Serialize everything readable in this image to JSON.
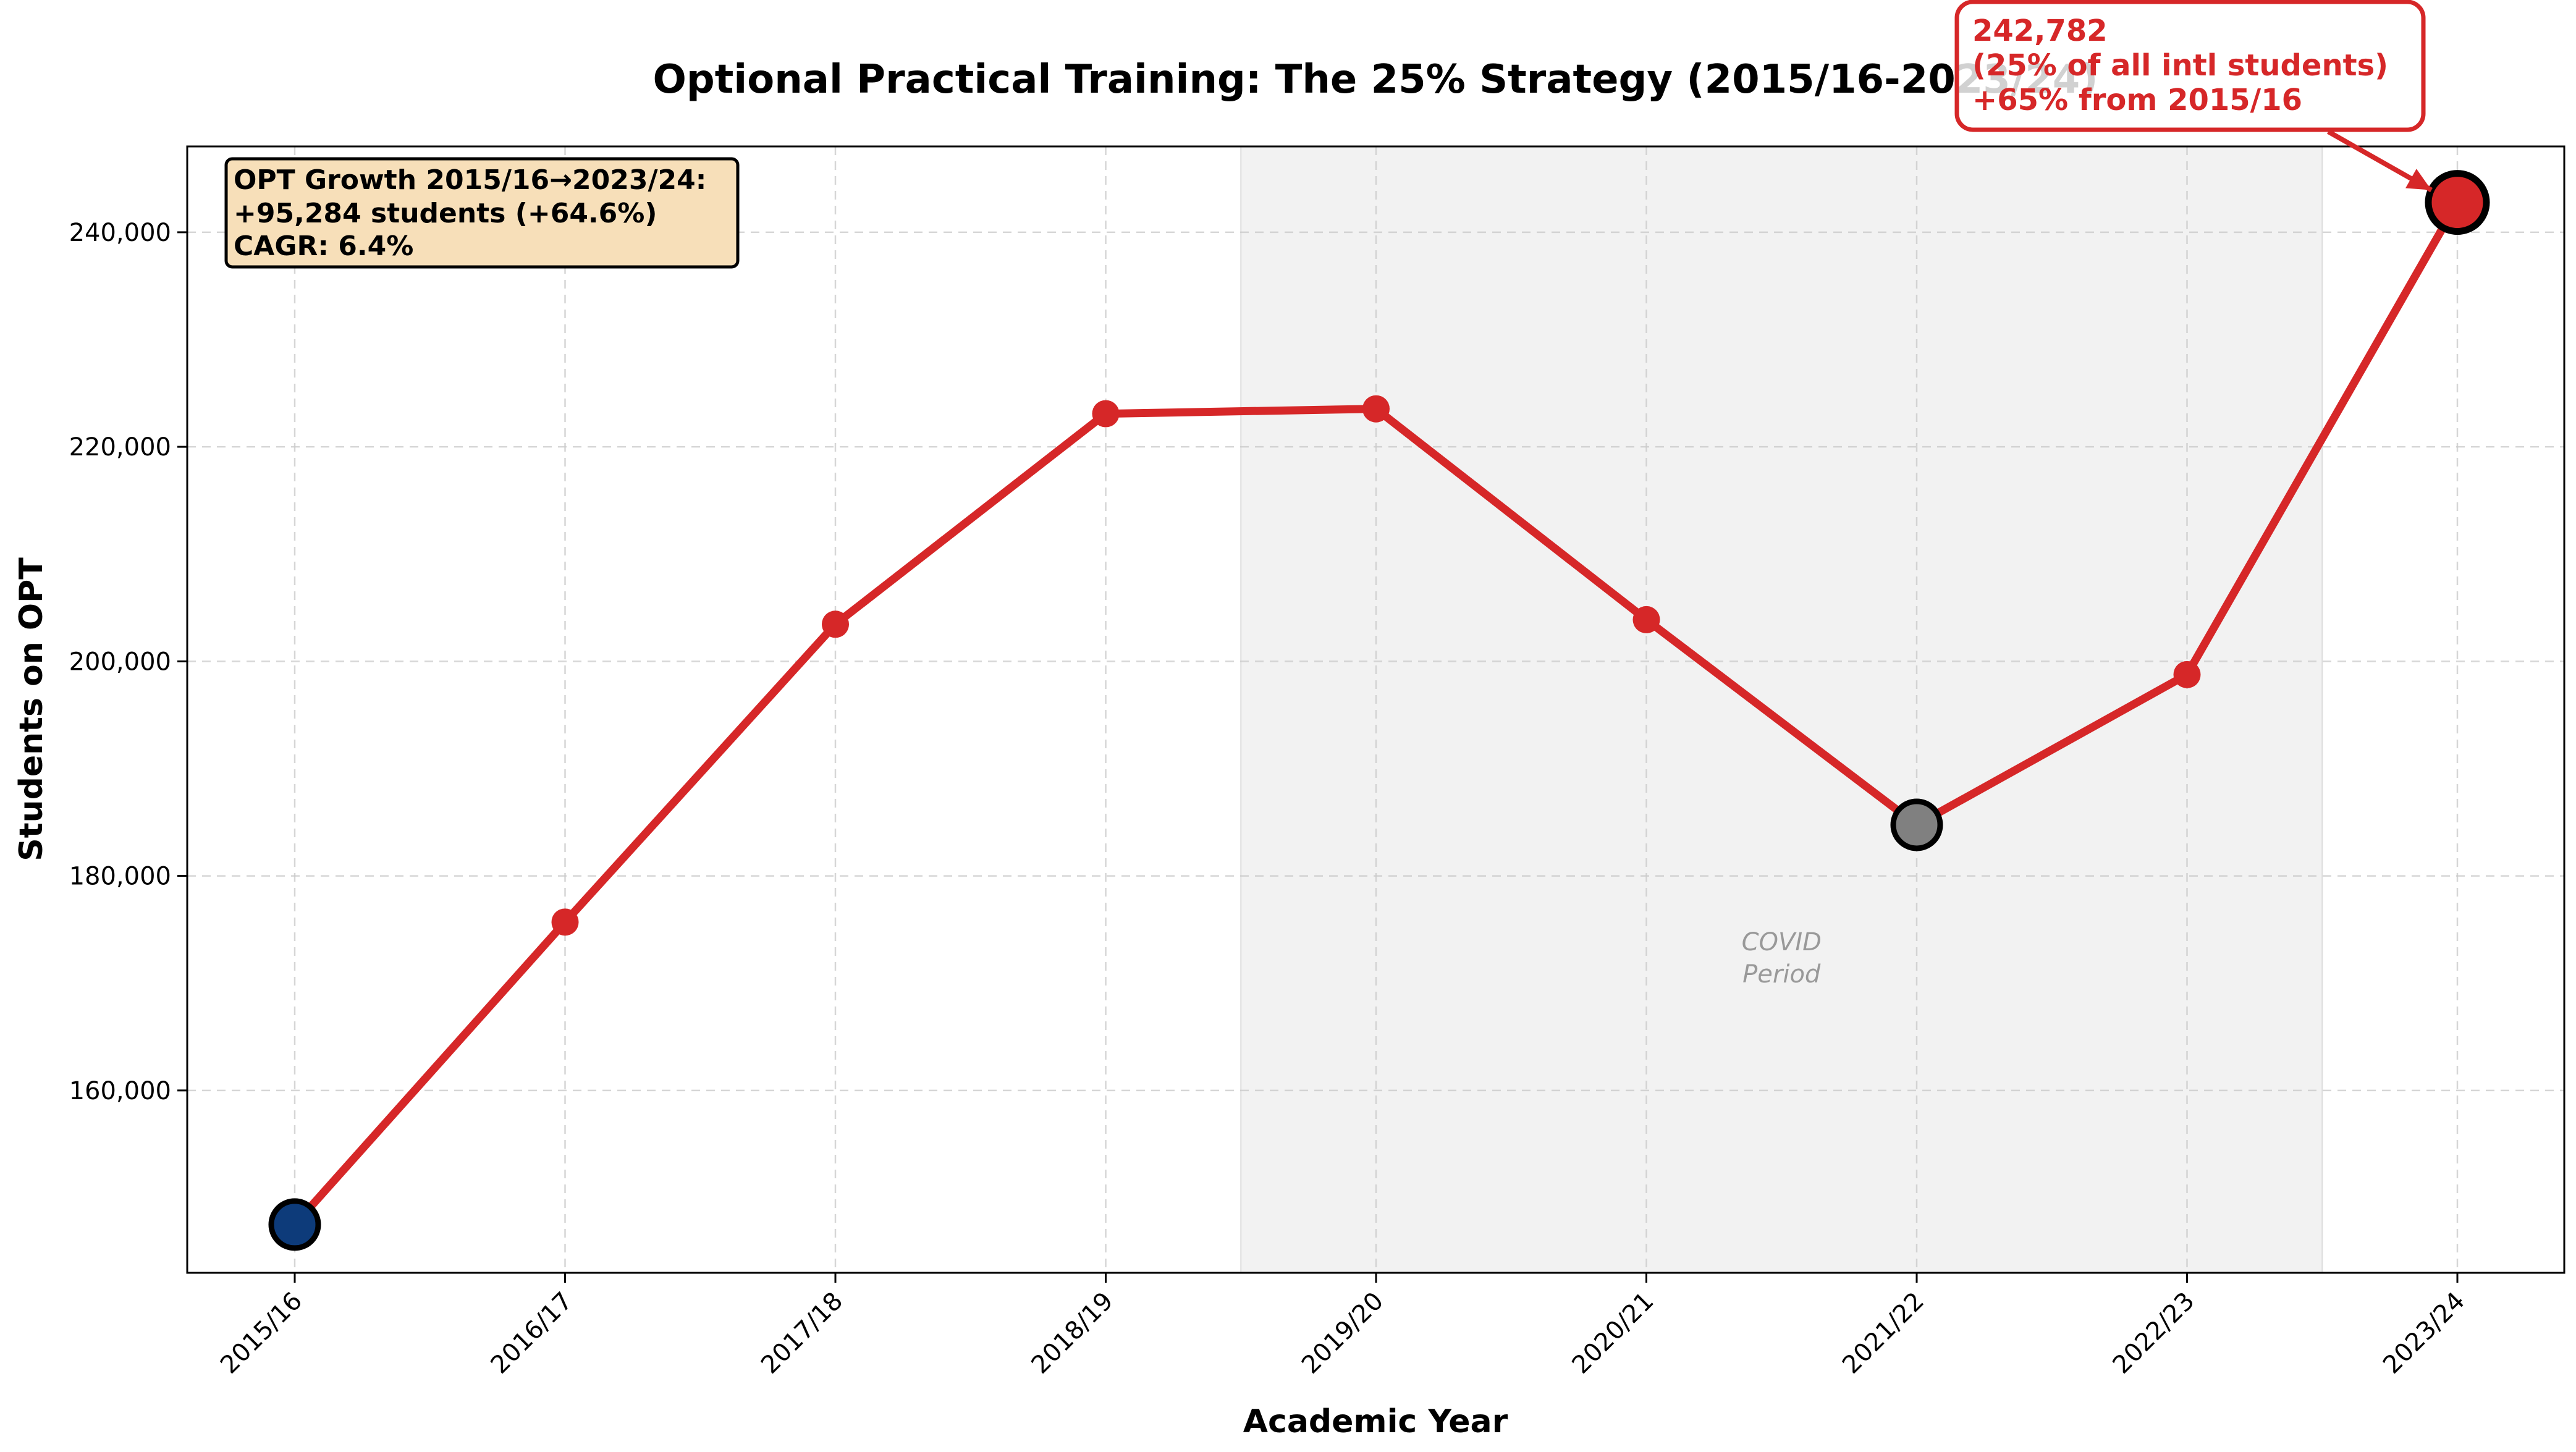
{
  "chart_data": {
    "type": "line",
    "title": "Optional Practical Training: The 25% Strategy (2015/16-2023/24)",
    "xlabel": "Academic Year",
    "ylabel": "Students on OPT",
    "categories": [
      "2015/16",
      "2016/17",
      "2017/18",
      "2018/19",
      "2019/20",
      "2020/21",
      "2021/22",
      "2022/23",
      "2023/24"
    ],
    "series": [
      {
        "values": [
          147498,
          175695,
          203462,
          223085,
          223539,
          203885,
          184759,
          198764,
          242782
        ]
      }
    ],
    "ylim": [
      143000,
      248000
    ],
    "yticks": [
      160000,
      180000,
      200000,
      220000,
      240000
    ],
    "ytick_labels": [
      "160,000",
      "180,000",
      "200,000",
      "220,000",
      "240,000"
    ],
    "grid": true,
    "shaded_region": {
      "from_category": "2018/19",
      "to_category": "2022/23",
      "label_line1": "COVID",
      "label_line2": "Period"
    },
    "highlight_points": [
      {
        "category": "2015/16",
        "color": "#0d3b7a"
      },
      {
        "category": "2021/22",
        "color": "#808080"
      },
      {
        "category": "2023/24",
        "color": "#d62728"
      }
    ],
    "info_box": {
      "line1": "OPT Growth 2015/16→2023/24:",
      "line2": "+95,284 students (+64.6%)",
      "line3": "CAGR: 6.4%"
    },
    "peak_annotation": {
      "line1": "242,782",
      "line2": "(25% of all intl students)",
      "line3": "+65% from 2015/16"
    },
    "colors": {
      "line": "#d62728",
      "start_marker": "#0d3b7a",
      "covid_low_marker": "#808080",
      "shade": "#f2f2f2",
      "info_box_bg": "#f7dfb9",
      "annotation_edge": "#d62728"
    }
  }
}
